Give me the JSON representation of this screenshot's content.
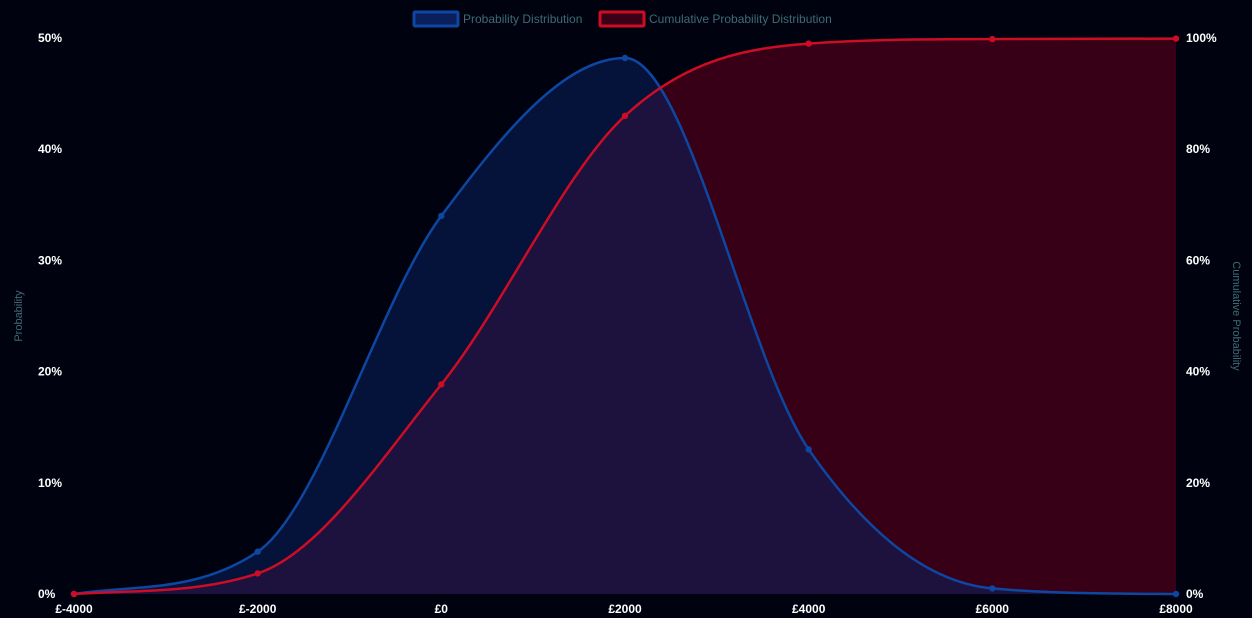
{
  "chart_data": {
    "type": "line",
    "x": [
      "£-4000",
      "£-2000",
      "£0",
      "£2000",
      "£4000",
      "£6000",
      "£8000"
    ],
    "series": [
      {
        "name": "Probability Distribution",
        "axis": "left",
        "values": [
          0.0,
          3.8,
          34.0,
          48.2,
          13.0,
          0.5,
          0.0
        ],
        "line_color": "#0d47a1",
        "fill_color": "#0a1f5c"
      },
      {
        "name": "Cumulative Probability Distribution",
        "axis": "right",
        "values": [
          0.0,
          3.7,
          37.7,
          86.0,
          99.0,
          99.8,
          99.9
        ],
        "line_color": "#cc0d25",
        "fill_color": "#3a0018"
      }
    ],
    "y_left": {
      "label": "Probability",
      "range": [
        0,
        50
      ],
      "ticks": [
        "0%",
        "10%",
        "20%",
        "30%",
        "40%",
        "50%"
      ],
      "tick_values": [
        0,
        10,
        20,
        30,
        40,
        50
      ]
    },
    "y_right": {
      "label": "Cumulative Probability",
      "range": [
        0,
        100
      ],
      "ticks": [
        "0%",
        "20%",
        "40%",
        "60%",
        "80%",
        "100%"
      ],
      "tick_values": [
        0,
        20,
        40,
        60,
        80,
        100
      ]
    },
    "legend": {
      "position": "top-center",
      "items": [
        "Probability Distribution",
        "Cumulative Probability Distribution"
      ]
    },
    "grid": false,
    "colors": {
      "background": "#00030f",
      "tick_text": "#ffffff",
      "axis_title": "#3e6b73"
    }
  }
}
